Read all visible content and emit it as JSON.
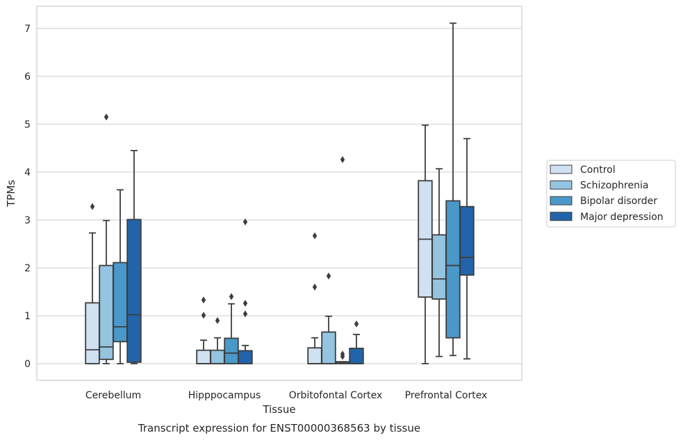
{
  "chart_data": {
    "type": "box",
    "title": "",
    "caption": "Transcript expression for ENST00000368563 by tissue",
    "xlabel": "Tissue",
    "ylabel": "TPMs",
    "ylim": [
      -0.35,
      7.45
    ],
    "yticks": [
      "0",
      "1",
      "2",
      "3",
      "4",
      "5",
      "6",
      "7"
    ],
    "grid": "horizontal",
    "legend_position": "right",
    "categories": [
      "Cerebellum",
      "Hipppocampus",
      "Orbitofontal Cortex",
      "Prefrontal Cortex"
    ],
    "series": [
      {
        "name": "Control",
        "color": "#d0e1f2",
        "boxes": [
          {
            "whislo": 0,
            "q1": 0,
            "med": 0.29,
            "q3": 1.27,
            "whishi": 2.73,
            "fliers": [
              3.28
            ]
          },
          {
            "whislo": 0,
            "q1": 0,
            "med": 0,
            "q3": 0.28,
            "whishi": 0.49,
            "fliers": [
              1.01,
              1.33
            ]
          },
          {
            "whislo": 0,
            "q1": 0,
            "med": 0,
            "q3": 0.33,
            "whishi": 0.54,
            "fliers": [
              1.6,
              2.67
            ]
          },
          {
            "whislo": 0,
            "q1": 1.39,
            "med": 2.6,
            "q3": 3.82,
            "whishi": 4.98,
            "fliers": []
          }
        ]
      },
      {
        "name": "Schizophrenia",
        "color": "#94c4df",
        "boxes": [
          {
            "whislo": 0,
            "q1": 0.09,
            "med": 0.35,
            "q3": 2.05,
            "whishi": 2.99,
            "fliers": [
              5.15
            ]
          },
          {
            "whislo": 0,
            "q1": 0,
            "med": 0,
            "q3": 0.28,
            "whishi": 0.54,
            "fliers": [
              0.9
            ]
          },
          {
            "whislo": 0,
            "q1": 0,
            "med": 0,
            "q3": 0.66,
            "whishi": 0.99,
            "fliers": [
              1.83
            ]
          },
          {
            "whislo": 0.15,
            "q1": 1.35,
            "med": 1.77,
            "q3": 2.69,
            "whishi": 4.07,
            "fliers": []
          }
        ]
      },
      {
        "name": "Bipolar disorder",
        "color": "#4a98c9",
        "boxes": [
          {
            "whislo": 0,
            "q1": 0.46,
            "med": 0.77,
            "q3": 2.11,
            "whishi": 3.63,
            "fliers": []
          },
          {
            "whislo": 0,
            "q1": 0,
            "med": 0.22,
            "q3": 0.53,
            "whishi": 1.25,
            "fliers": [
              1.4
            ]
          },
          {
            "whislo": 0,
            "q1": 0,
            "med": 0.03,
            "q3": 0.04,
            "whishi": 0.04,
            "fliers": [
              0.15,
              0.2,
              4.26
            ]
          },
          {
            "whislo": 0.17,
            "q1": 0.54,
            "med": 2.05,
            "q3": 3.4,
            "whishi": 7.11,
            "fliers": []
          }
        ]
      },
      {
        "name": "Major depression",
        "color": "#2164ab",
        "boxes": [
          {
            "whislo": 0,
            "q1": 0.03,
            "med": 1.02,
            "q3": 3.01,
            "whishi": 4.45,
            "fliers": []
          },
          {
            "whislo": 0,
            "q1": 0,
            "med": 0,
            "q3": 0.27,
            "whishi": 0.38,
            "fliers": [
              1.04,
              1.26,
              2.96
            ]
          },
          {
            "whislo": 0,
            "q1": 0,
            "med": 0,
            "q3": 0.32,
            "whishi": 0.61,
            "fliers": [
              0.83
            ]
          },
          {
            "whislo": 0.1,
            "q1": 1.85,
            "med": 2.22,
            "q3": 3.28,
            "whishi": 4.7,
            "fliers": []
          }
        ]
      }
    ]
  }
}
